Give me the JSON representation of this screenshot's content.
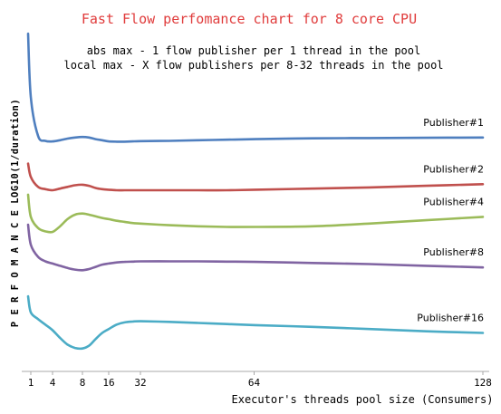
{
  "chart_data": {
    "type": "line",
    "title": "Fast Flow perfomance chart for 8 core CPU",
    "subtitle_lines": [
      "abs max - 1 flow publisher per 1 thread in the pool",
      "local max - X flow publishers per 8-32 threads in the pool"
    ],
    "xlabel": "Executor's threads pool size (Consumers)",
    "ylabel": "P E R F O M A N C E  LOG10(1/duration)",
    "x_ticks": [
      1,
      4,
      8,
      16,
      32,
      64,
      128
    ],
    "xlim": [
      0,
      128
    ],
    "grid": false,
    "legend": "inline-labels-right",
    "title_color": "#e03c3c",
    "series": [
      {
        "name": "Publisher#1",
        "color": "#4f7fbf",
        "x": [
          0,
          1,
          2,
          3,
          4,
          5,
          6,
          7,
          8,
          10,
          12,
          14,
          16,
          20,
          24,
          28,
          32,
          40,
          48,
          56,
          64,
          80,
          96,
          112,
          128
        ],
        "y": [
          5.92,
          4.78,
          4.08,
          3.99,
          3.98,
          4.0,
          4.03,
          4.05,
          4.06,
          4.05,
          4.02,
          4.0,
          3.98,
          3.975,
          3.975,
          3.98,
          3.985,
          3.99,
          4.0,
          4.01,
          4.02,
          4.035,
          4.04,
          4.045,
          4.05
        ]
      },
      {
        "name": "Publisher#2",
        "color": "#c0504d",
        "x": [
          0,
          1,
          2,
          3,
          4,
          5,
          6,
          7,
          8,
          10,
          12,
          14,
          16,
          20,
          24,
          28,
          32,
          40,
          48,
          56,
          64,
          80,
          96,
          112,
          128
        ],
        "y": [
          3.58,
          3.34,
          3.16,
          3.12,
          3.1,
          3.13,
          3.16,
          3.19,
          3.2,
          3.18,
          3.14,
          3.12,
          3.11,
          3.1,
          3.1,
          3.1,
          3.1,
          3.1,
          3.1,
          3.1,
          3.11,
          3.13,
          3.15,
          3.18,
          3.21
        ]
      },
      {
        "name": "Publisher#4",
        "color": "#9bbb59",
        "x": [
          0,
          1,
          2,
          3,
          4,
          5,
          6,
          7,
          8,
          10,
          12,
          14,
          16,
          20,
          24,
          28,
          32,
          40,
          48,
          56,
          64,
          80,
          96,
          112,
          128
        ],
        "y": [
          3.02,
          2.62,
          2.42,
          2.36,
          2.35,
          2.45,
          2.58,
          2.66,
          2.68,
          2.66,
          2.63,
          2.6,
          2.58,
          2.55,
          2.53,
          2.51,
          2.5,
          2.47,
          2.45,
          2.44,
          2.44,
          2.45,
          2.5,
          2.56,
          2.62
        ]
      },
      {
        "name": "Publisher#8",
        "color": "#8064a2",
        "x": [
          0,
          1,
          2,
          3,
          4,
          5,
          6,
          7,
          8,
          10,
          12,
          14,
          16,
          20,
          24,
          28,
          32,
          40,
          48,
          56,
          64,
          80,
          96,
          112,
          128
        ],
        "y": [
          2.48,
          2.12,
          1.9,
          1.82,
          1.78,
          1.74,
          1.7,
          1.67,
          1.66,
          1.68,
          1.72,
          1.76,
          1.78,
          1.8,
          1.81,
          1.815,
          1.82,
          1.82,
          1.82,
          1.815,
          1.81,
          1.79,
          1.77,
          1.74,
          1.71
        ]
      },
      {
        "name": "Publisher#16",
        "color": "#4bacc6",
        "x": [
          0,
          1,
          2,
          3,
          4,
          5,
          6,
          7,
          8,
          10,
          12,
          14,
          16,
          20,
          24,
          28,
          32,
          40,
          48,
          56,
          64,
          80,
          96,
          112,
          128
        ],
        "y": [
          1.19,
          0.9,
          0.78,
          0.68,
          0.58,
          0.44,
          0.32,
          0.26,
          0.25,
          0.3,
          0.42,
          0.53,
          0.6,
          0.68,
          0.72,
          0.735,
          0.74,
          0.73,
          0.71,
          0.69,
          0.67,
          0.64,
          0.6,
          0.56,
          0.53
        ]
      }
    ]
  }
}
